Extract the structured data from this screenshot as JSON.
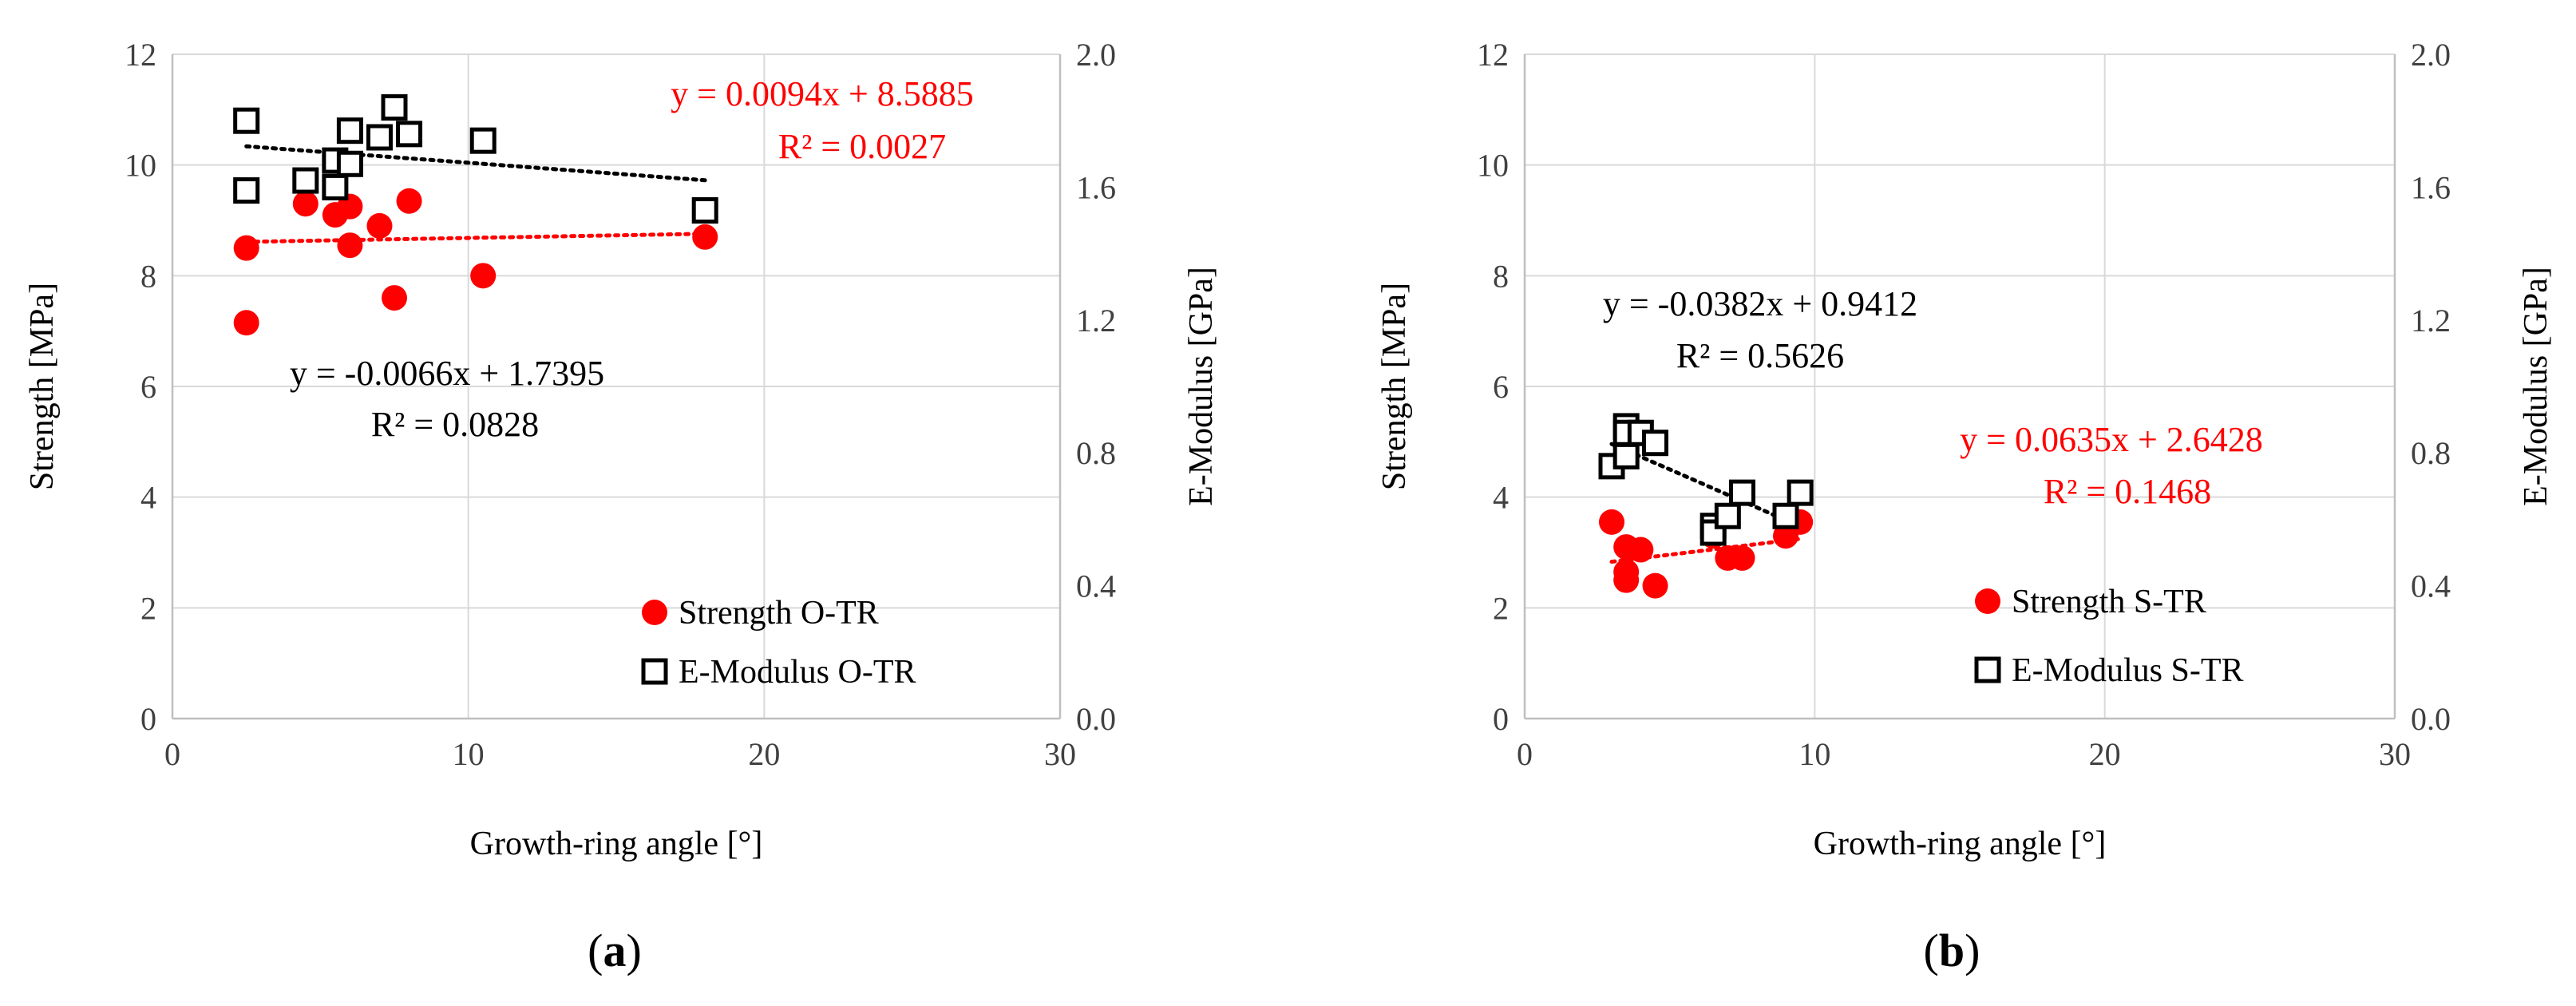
{
  "chart_data": [
    {
      "type": "scatter",
      "panel_label": "a",
      "xlabel": "Growth-ring angle [°]",
      "ylabel": "Strength [MPa]",
      "y2label": "E-Modulus [GPa]",
      "xlim": [
        0,
        30
      ],
      "ylim": [
        0,
        12
      ],
      "y2lim": [
        0,
        2.0
      ],
      "xticks": [
        "0",
        "10",
        "20",
        "30"
      ],
      "yticks": [
        "0",
        "2",
        "4",
        "6",
        "8",
        "10",
        "12"
      ],
      "y2ticks": [
        "0.0",
        "0.4",
        "0.8",
        "1.2",
        "1.6",
        "2.0"
      ],
      "grid": true,
      "legend_position": "bottom-right",
      "series": [
        {
          "name": "Strength O-TR",
          "axis": "left",
          "marker": "circle",
          "color": "#ff0000",
          "x": [
            2.5,
            2.5,
            4.5,
            5.5,
            6,
            6,
            7,
            7.5,
            8,
            10.5,
            18
          ],
          "y": [
            8.5,
            7.15,
            9.3,
            9.1,
            9.25,
            8.55,
            8.9,
            7.6,
            9.35,
            8.0,
            8.7
          ],
          "trend": {
            "slope": 0.0094,
            "intercept": 8.5885,
            "equation": "y = 0.0094x + 8.5885",
            "r2": "R² = 0.0027",
            "color": "#ff0000"
          }
        },
        {
          "name": "E-Modulus O-TR",
          "axis": "right",
          "marker": "square",
          "color": "#000000",
          "x": [
            2.5,
            2.5,
            4.5,
            5.5,
            5.5,
            6,
            6,
            7,
            7.5,
            8,
            10.5,
            18
          ],
          "y": [
            1.8,
            1.59,
            1.62,
            1.68,
            1.6,
            1.77,
            1.67,
            1.75,
            1.84,
            1.76,
            1.74,
            1.53
          ],
          "trend": {
            "slope": -0.0066,
            "intercept": 1.7395,
            "equation": "y = -0.0066x + 1.7395",
            "r2": "R² = 0.0828",
            "color": "#000000"
          }
        }
      ]
    },
    {
      "type": "scatter",
      "panel_label": "b",
      "xlabel": "Growth-ring angle [°]",
      "ylabel": "Strength [MPa]",
      "y2label": "E-Modulus [GPa]",
      "xlim": [
        0,
        30
      ],
      "ylim": [
        0,
        12
      ],
      "y2lim": [
        0,
        2.0
      ],
      "xticks": [
        "0",
        "10",
        "20",
        "30"
      ],
      "yticks": [
        "0",
        "2",
        "4",
        "6",
        "8",
        "10",
        "12"
      ],
      "y2ticks": [
        "0.0",
        "0.4",
        "0.8",
        "1.2",
        "1.6",
        "2.0"
      ],
      "grid": true,
      "legend_position": "bottom-right",
      "series": [
        {
          "name": "Strength S-TR",
          "axis": "left",
          "marker": "circle",
          "color": "#ff0000",
          "x": [
            3,
            3.5,
            3.5,
            3.5,
            4,
            4.5,
            6.5,
            7,
            7.5,
            9,
            9.5
          ],
          "y": [
            3.55,
            3.1,
            2.65,
            2.5,
            3.05,
            2.4,
            3.3,
            2.9,
            2.9,
            3.3,
            3.55
          ],
          "trend": {
            "slope": 0.0635,
            "intercept": 2.6428,
            "equation": "y = 0.0635x + 2.6428",
            "r2": "R² = 0.1468",
            "color": "#ff0000"
          }
        },
        {
          "name": "E-Modulus S-TR",
          "axis": "right",
          "marker": "square",
          "color": "#000000",
          "x": [
            3,
            3.5,
            3.5,
            3.5,
            4,
            4.5,
            6.5,
            6.5,
            7,
            7.5,
            9,
            9.5
          ],
          "y": [
            0.76,
            0.88,
            0.86,
            0.79,
            0.86,
            0.83,
            0.58,
            0.56,
            0.61,
            0.68,
            0.61,
            0.68
          ],
          "trend": {
            "slope": -0.0382,
            "intercept": 0.9412,
            "equation": "y = -0.0382x + 0.9412",
            "r2": "R² = 0.5626",
            "color": "#000000"
          }
        }
      ]
    }
  ]
}
